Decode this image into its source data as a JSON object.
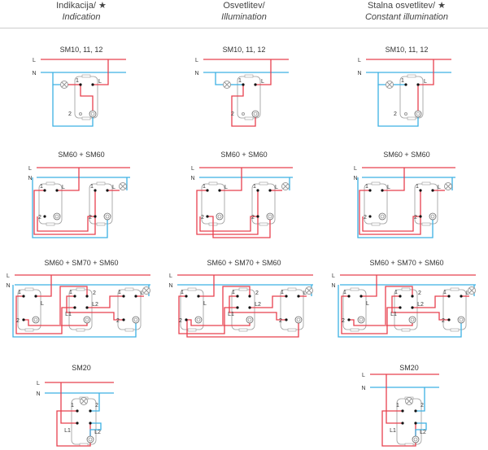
{
  "columns": [
    {
      "title": "Indikacija/",
      "subtitle": "Indication",
      "star": "★"
    },
    {
      "title": "Osvetlitev/",
      "subtitle": "Illumination",
      "star": ""
    },
    {
      "title": "Stalna osvetlitev/",
      "subtitle": "Constant illumination",
      "star": "★"
    }
  ],
  "rows": [
    {
      "title": "SM10, 11, 12"
    },
    {
      "title": "SM60 + SM60"
    },
    {
      "title": "SM60 + SM70 + SM60"
    },
    {
      "title": "SM20"
    }
  ],
  "labels": {
    "line": "L",
    "neutral": "N",
    "t1": "1",
    "t2": "2",
    "l1": "L1",
    "l2": "L2"
  },
  "colors": {
    "line": "#e8404e",
    "neutral": "#3cb1e3",
    "device": "#9a9a9a"
  }
}
